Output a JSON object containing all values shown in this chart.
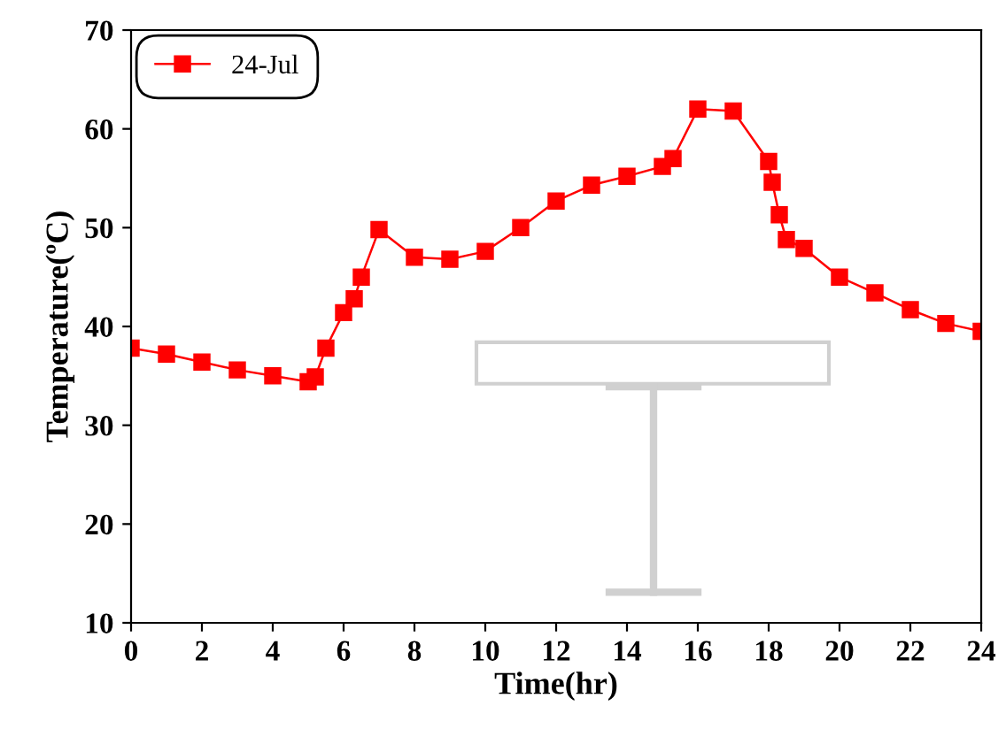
{
  "chart_data": {
    "type": "line",
    "xlabel": "Time(hr)",
    "ylabel": "Temperature(ºC)",
    "x": [
      0,
      1,
      2,
      3,
      4,
      5,
      5.2,
      5.5,
      6,
      6.3,
      6.5,
      7,
      8,
      9,
      10,
      11,
      12,
      13,
      14,
      15,
      15.3,
      16,
      17,
      18,
      18.1,
      18.3,
      18.5,
      19,
      20,
      21,
      22,
      23,
      24
    ],
    "series": [
      {
        "name": "24-Jul",
        "color": "#ff0000",
        "values": [
          37.8,
          37.2,
          36.4,
          35.6,
          35.0,
          34.4,
          34.9,
          37.8,
          41.4,
          42.8,
          45.0,
          49.8,
          47.0,
          46.8,
          47.6,
          50.0,
          52.7,
          54.3,
          55.2,
          56.2,
          57.0,
          62.0,
          61.8,
          56.7,
          54.6,
          51.3,
          48.8,
          47.9,
          45.0,
          43.4,
          41.7,
          40.3,
          39.5
        ]
      }
    ],
    "xlim": [
      0,
      24
    ],
    "xticks": [
      0,
      2,
      4,
      6,
      8,
      10,
      12,
      14,
      16,
      18,
      20,
      22,
      24
    ],
    "ylim": [
      10,
      70
    ],
    "yticks": [
      10,
      20,
      30,
      40,
      50,
      60,
      70
    ],
    "marker": "square",
    "line_style": "solid",
    "legend": "top left",
    "grid": false
  }
}
